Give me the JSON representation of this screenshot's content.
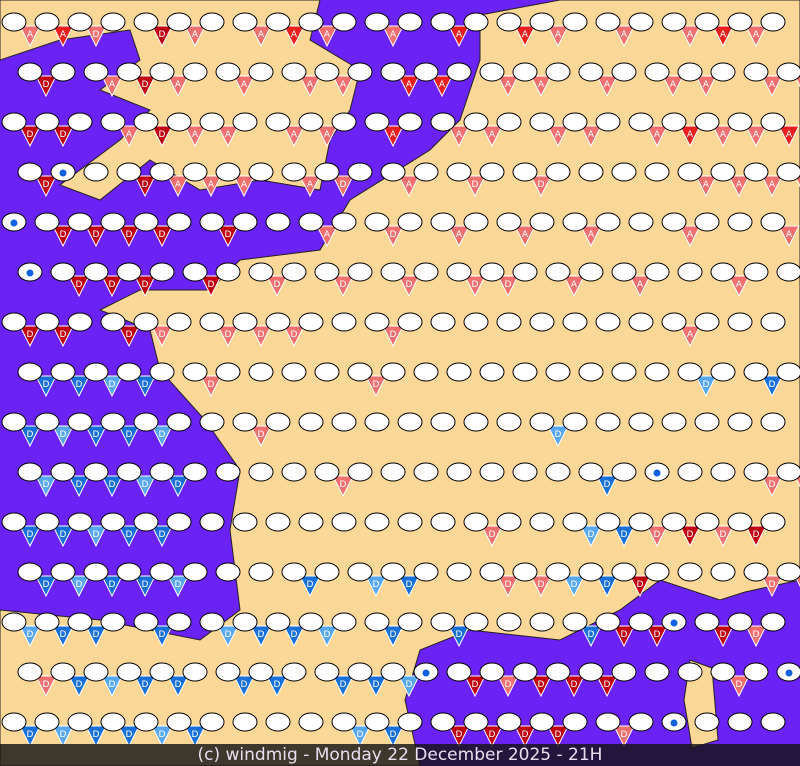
{
  "footer": {
    "caption": "(c) windmig - Monday 22 December 2025 - 21H"
  },
  "colors": {
    "sea": "#6b22f5",
    "land": "#fcd898",
    "border": "#222222",
    "wind_light_red": "#f07070",
    "wind_red": "#e82020",
    "wind_dark_red": "#c00010",
    "wind_blue": "#1870d8",
    "wind_light_blue": "#58a8f0",
    "rain": "#1060e0"
  },
  "marker_legend": {
    ".": "calm",
    "a": "light wind A",
    "A": "strong wind A",
    "d": "light wind D",
    "D": "strong wind D",
    "b": "wind D blue",
    "r": "rain"
  },
  "marker_rows": [
    "aAd.Da.aAa.a.A.Aa.a.aAa.",
    "D.aDa.a.aa.AA.aa.a.aa.aa",
    "DD.aDaa.aa.A.aa.aa.aAaaA",
    "Dr.Daaa.ad.a.d.d....aaaa",
    "rDDDD.D..a.d.a.a.a..a..a",
    "rDDD.D.d.d.d.dd.a.a..a..",
    "DD.Dd.ddd..d........a...",
    "bbbb.d....d.........b.b.",
    "bbbbb..d........b.......",
    "bbbbb....d.......b.r..dd",
    "bbbbb.........d..bbdDdD.",
    "bbbbb...b.bb..ddbbD...dd",
    "bbb.b.bbbb.b.b...bDDrDd.",
    "dbbbb.bb.bbbrDdDDD...d.r",
    "bbbbbb....bb.DDDD.d.r..."
  ]
}
